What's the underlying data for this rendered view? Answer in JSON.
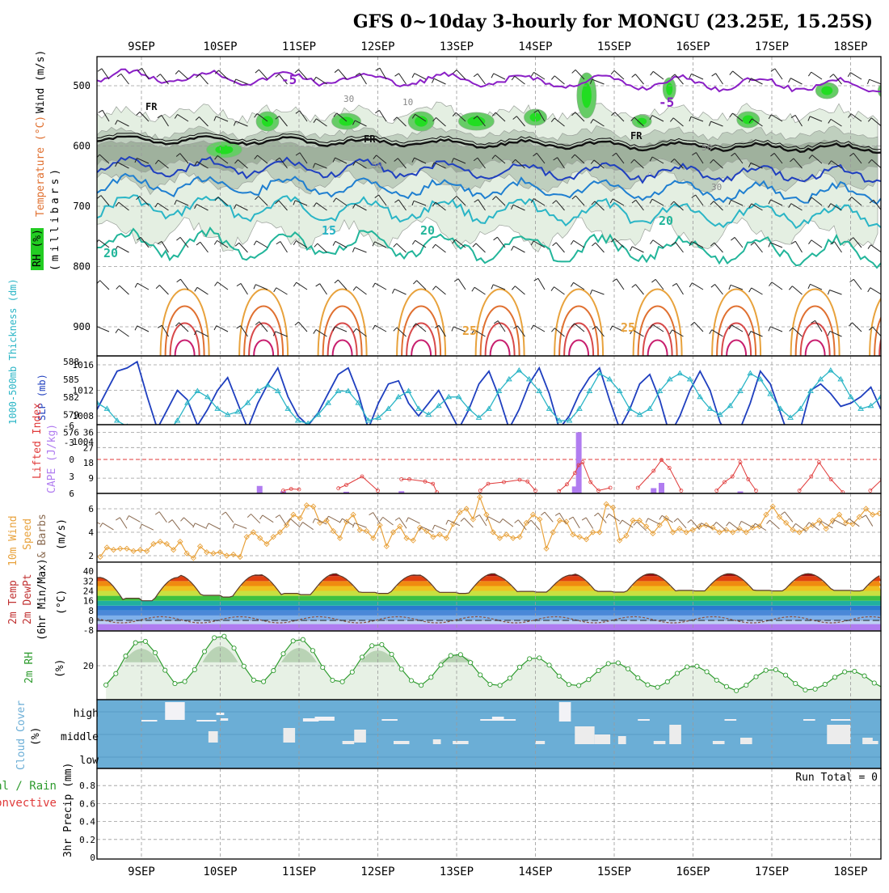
{
  "title": "GFS 0~10day 3-hourly for MONGU (23.25E, 15.25S)",
  "dates": [
    "9SEP",
    "10SEP",
    "11SEP",
    "12SEP",
    "13SEP",
    "14SEP",
    "15SEP",
    "16SEP",
    "17SEP",
    "18SEP"
  ],
  "colors": {
    "frame": "#000000",
    "grid": "#9a9a9a",
    "cloud_bg": "#6baed6",
    "rh_fill": "#cfe3cf",
    "rh_line": "#2e9b2e",
    "slp": "#1f3fbf",
    "thk": "#2ab5c6",
    "cape": "#b07cf0",
    "li": "#e03a3a",
    "wind": "#e8a23c",
    "barb": "#8a6a50"
  },
  "panel_labels": {
    "upper": {
      "rh": "RH (%)",
      "temp": "Temperature (°C)",
      "wind": "Wind (m/s)",
      "mb": "(millibars)"
    },
    "slp": {
      "thk": "1000-500mb Thickness (dm)",
      "slp": "SLP (mb)"
    },
    "cape": {
      "li": "Lifted Index",
      "cape": "CAPE (J/kg)"
    },
    "wind10": {
      "a": "10m Wind",
      "b": "Speed",
      "c": "& Barbs",
      "unit": "(m/s)"
    },
    "temp2m": {
      "a": "2m Temp",
      "b": "2m DewPt",
      "c": "(6hr Min/Max)",
      "unit": "(°C)"
    },
    "rh2m": {
      "a": "2m RH",
      "unit": "(%)"
    },
    "cloud": {
      "a": "Cloud Cover",
      "unit": "(%)"
    },
    "precip": {
      "a": "Total / Rain",
      "b": "Convective",
      "c": "3hr Precip (mm)"
    }
  },
  "upper_labels": {
    "fr": "FR",
    "neg5": "-5",
    "t15": "15",
    "t20": "20",
    "t25": "25",
    "w10": "10",
    "w30": "30",
    "w50": "50"
  },
  "cloud_levels": [
    "high",
    "middle",
    "low"
  ],
  "run_total": "Run Total = 0",
  "chart_data": [
    {
      "type": "line",
      "name": "upper_air",
      "ylabel": "millibars",
      "yticks": [
        500,
        600,
        700,
        800,
        900
      ],
      "contours": [
        "FR",
        "-5",
        "15",
        "20",
        "25"
      ]
    },
    {
      "type": "line",
      "name": "slp_thickness",
      "yticks_left": [
        576,
        579,
        582,
        585,
        588
      ],
      "yticks_right": [
        1004,
        1008,
        1012,
        1016
      ],
      "slp": [
        1009,
        1012,
        1015,
        1015.5,
        1016.5,
        1011,
        1006,
        1009,
        1012,
        1010.5,
        1006.5,
        1009,
        1012,
        1014,
        1010,
        1006,
        1010,
        1013,
        1015.5,
        1011,
        1008,
        1006.5,
        1008.5,
        1011.5,
        1014.5,
        1015.5,
        1011.5,
        1006,
        1010,
        1013,
        1013.5,
        1010,
        1008,
        1010,
        1012,
        1009,
        1006,
        1009,
        1013,
        1015,
        1011,
        1006,
        1009,
        1013,
        1015.5,
        1011.5,
        1006,
        1008,
        1011.5,
        1014,
        1015.5,
        1010.5,
        1006,
        1009,
        1013,
        1014.5,
        1010.5,
        1005,
        1008,
        1012,
        1015,
        1012,
        1007,
        1004.5,
        1006,
        1010,
        1015,
        1013,
        1008.5,
        1004,
        1006,
        1012,
        1013,
        1011.5,
        1009.5,
        1010,
        1011,
        1012.5,
        1009
      ],
      "thk": [
        581,
        580,
        578,
        577,
        576.5,
        576,
        576,
        576,
        578,
        581,
        583,
        582,
        580,
        579,
        579.5,
        581,
        583,
        584,
        583,
        580,
        578,
        577.5,
        579,
        581,
        583,
        583,
        581,
        578,
        578.5,
        580,
        582,
        583,
        580,
        579,
        580.5,
        582,
        582,
        580,
        578.5,
        580,
        583,
        585,
        586.5,
        585,
        583,
        580,
        578,
        578,
        580,
        583,
        586,
        585,
        583,
        580,
        579,
        580,
        583,
        585,
        586,
        585,
        582,
        580,
        579,
        580.5,
        583,
        586,
        585,
        582.5,
        580,
        578.5,
        580,
        583,
        585,
        586.5,
        585,
        582,
        580,
        580.5,
        582
      ]
    },
    {
      "type": "bar",
      "name": "cape_li",
      "yticks_cape": [
        9,
        18,
        27,
        36
      ],
      "yticks_li": [
        6,
        3,
        0,
        -3,
        -6
      ],
      "cape_bars": [
        [
          1.5,
          4.4
        ],
        [
          1.8,
          1.3
        ],
        [
          2.6,
          1.0
        ],
        [
          3.3,
          1.3
        ],
        [
          5.5,
          4.1
        ],
        [
          5.55,
          36.0
        ],
        [
          6.5,
          3.1
        ],
        [
          6.6,
          6.2
        ],
        [
          7.6,
          1.2
        ]
      ],
      "li_segments": [
        [
          [
            1.8,
            5.5
          ],
          [
            1.9,
            5.2
          ],
          [
            2.0,
            5.3
          ]
        ],
        [
          [
            2.5,
            5.1
          ],
          [
            2.6,
            4.5
          ],
          [
            2.8,
            3.0
          ],
          [
            3.0,
            5.5
          ]
        ],
        [
          [
            3.3,
            3.5
          ],
          [
            3.4,
            3.5
          ],
          [
            3.6,
            3.9
          ],
          [
            3.7,
            4.3
          ],
          [
            3.75,
            5.8
          ]
        ],
        [
          [
            4.3,
            5.5
          ],
          [
            4.4,
            4.3
          ],
          [
            4.6,
            4.0
          ],
          [
            4.8,
            3.6
          ],
          [
            4.9,
            3.9
          ],
          [
            5.0,
            5.5
          ]
        ],
        [
          [
            5.3,
            5.6
          ],
          [
            5.4,
            4.4
          ],
          [
            5.5,
            2.4
          ],
          [
            5.55,
            1.0
          ],
          [
            5.6,
            0.5
          ],
          [
            5.7,
            4.0
          ],
          [
            5.8,
            5.5
          ],
          [
            5.95,
            5.0
          ]
        ],
        [
          [
            6.3,
            5.0
          ],
          [
            6.5,
            2.0
          ],
          [
            6.6,
            0.1
          ],
          [
            6.7,
            1.5
          ],
          [
            6.85,
            5.5
          ]
        ],
        [
          [
            7.3,
            5.5
          ],
          [
            7.4,
            4.0
          ],
          [
            7.5,
            3.0
          ],
          [
            7.6,
            0.5
          ],
          [
            7.7,
            3.5
          ],
          [
            7.8,
            5.5
          ]
        ],
        [
          [
            8.35,
            5.5
          ],
          [
            8.5,
            3.0
          ],
          [
            8.6,
            0.5
          ],
          [
            8.75,
            3.5
          ],
          [
            8.9,
            5.8
          ]
        ],
        [
          [
            9.25,
            5.5
          ],
          [
            9.4,
            3.5
          ],
          [
            9.55,
            0.0
          ],
          [
            9.65,
            0.0
          ],
          [
            9.75,
            5.8
          ]
        ]
      ]
    },
    {
      "type": "line",
      "name": "wind10m",
      "yticks": [
        2,
        4,
        6
      ],
      "speed": [
        1.9,
        2.7,
        2.5,
        2.6,
        2.6,
        2.4,
        2.5,
        2.4,
        3.0,
        3.2,
        3.0,
        2.5,
        3.2,
        2.2,
        1.8,
        2.8,
        2.3,
        2.2,
        2.3,
        2.0,
        2.1,
        1.9,
        3.6,
        4.0,
        3.5,
        3.0,
        3.6,
        4.0,
        4.6,
        5.5,
        5.2,
        6.3,
        6.2,
        4.8,
        5.0,
        4.1,
        3.5,
        4.9,
        5.5,
        4.2,
        4.1,
        3.5,
        4.6,
        2.8,
        4.0,
        4.5,
        3.5,
        3.3,
        4.4,
        4.1,
        3.6,
        3.8,
        3.5,
        4.7,
        5.7,
        6.0,
        5.1,
        7.0,
        5.5,
        4.0,
        3.5,
        3.8,
        3.5,
        3.6,
        4.8,
        5.5,
        5.1,
        2.6,
        4.0,
        5.0,
        4.9,
        3.8,
        3.6,
        3.4,
        4.0,
        4.0,
        6.4,
        6.1,
        3.3,
        3.7,
        5.0,
        5.0,
        4.5,
        3.9,
        4.6,
        5.2,
        4.0,
        4.3,
        4.0,
        4.2,
        4.5,
        4.6,
        4.4,
        4.0,
        4.2,
        4.0,
        4.3,
        4.0,
        4.4,
        4.5,
        5.5,
        6.2,
        5.3,
        4.8,
        4.2,
        4.0,
        4.3,
        4.6,
        5.0,
        4.3,
        5.0,
        5.5,
        4.8,
        4.7,
        5.3,
        6.0,
        5.5,
        5.6
      ]
    },
    {
      "type": "area",
      "name": "temp2m",
      "yticks": [
        -8,
        0,
        8,
        16,
        24,
        32,
        40
      ],
      "temp_max": [
        35,
        37,
        38,
        37,
        38,
        37,
        38,
        38,
        38,
        38
      ],
      "temp_min": [
        16,
        19,
        21,
        22,
        22,
        23,
        23,
        24,
        24,
        24
      ],
      "dewpoint_range": [
        -3,
        4
      ]
    },
    {
      "type": "line",
      "name": "rh2m",
      "yticks": [
        20
      ],
      "peaks": [
        35,
        38,
        36,
        33,
        27,
        25,
        22,
        20,
        18,
        17
      ],
      "troughs": [
        8,
        10,
        10,
        10,
        8,
        8,
        8,
        7,
        5,
        6
      ]
    },
    {
      "type": "bar",
      "name": "cloud_cover",
      "levels": [
        "high",
        "middle",
        "low"
      ]
    },
    {
      "type": "line",
      "name": "precip3hr",
      "yticks": [
        0,
        0.2,
        0.4,
        0.6,
        0.8
      ],
      "values": [
        0
      ],
      "run_total": 0
    }
  ]
}
